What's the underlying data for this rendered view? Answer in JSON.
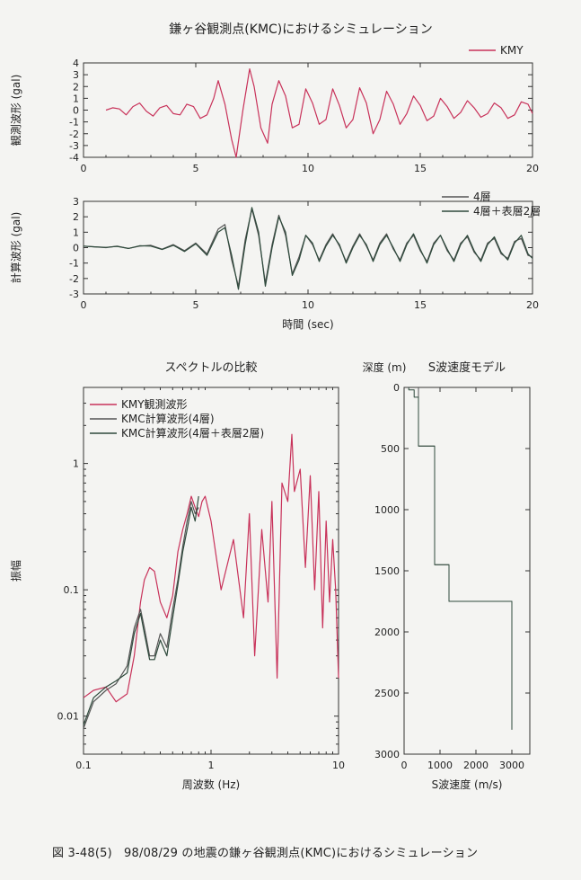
{
  "figure": {
    "title": "鎌ヶ谷観測点(KMC)におけるシミュレーション",
    "caption": "図 3-48(5)　98/08/29 の地震の鎌ヶ谷観測点(KMC)におけるシミュレーション"
  },
  "colors": {
    "observed": "#c8325a",
    "layer4": "#555555",
    "layer4_surface": "#2e4a3c",
    "axis": "#333333"
  },
  "chart_data": [
    {
      "id": "observed_waveform",
      "type": "line",
      "title": "",
      "ylabel": "観測波形 (gal)",
      "xlabel": "",
      "xlim": [
        0,
        20
      ],
      "ylim": [
        -4,
        4
      ],
      "xticks": [
        0,
        5,
        10,
        15,
        20
      ],
      "yticks": [
        4,
        3,
        2,
        1,
        0,
        -1,
        -2,
        -3,
        -4
      ],
      "legend": [
        "KMY"
      ],
      "series": [
        {
          "name": "KMY",
          "color": "#c8325a",
          "x": [
            1.0,
            1.3,
            1.6,
            1.9,
            2.2,
            2.5,
            2.8,
            3.1,
            3.4,
            3.7,
            4.0,
            4.3,
            4.6,
            4.9,
            5.2,
            5.5,
            5.8,
            6.0,
            6.3,
            6.6,
            6.8,
            7.1,
            7.4,
            7.6,
            7.9,
            8.2,
            8.4,
            8.7,
            9.0,
            9.3,
            9.6,
            9.9,
            10.2,
            10.5,
            10.8,
            11.1,
            11.4,
            11.7,
            12.0,
            12.3,
            12.6,
            12.9,
            13.2,
            13.5,
            13.8,
            14.1,
            14.4,
            14.7,
            15.0,
            15.3,
            15.6,
            15.9,
            16.2,
            16.5,
            16.8,
            17.1,
            17.4,
            17.7,
            18.0,
            18.3,
            18.6,
            18.9,
            19.2,
            19.5,
            19.8,
            20.0
          ],
          "y": [
            0,
            0.2,
            0.1,
            -0.4,
            0.3,
            0.6,
            -0.1,
            -0.5,
            0.2,
            0.4,
            -0.3,
            -0.4,
            0.5,
            0.3,
            -0.7,
            -0.4,
            1.0,
            2.5,
            0.5,
            -2.5,
            -4.0,
            0.0,
            3.5,
            2.0,
            -1.5,
            -2.8,
            0.5,
            2.5,
            1.2,
            -1.5,
            -1.2,
            1.8,
            0.6,
            -1.2,
            -0.8,
            1.8,
            0.4,
            -1.5,
            -0.8,
            1.9,
            0.6,
            -2.0,
            -0.8,
            1.6,
            0.5,
            -1.2,
            -0.3,
            1.2,
            0.4,
            -0.9,
            -0.5,
            1.0,
            0.3,
            -0.7,
            -0.2,
            0.8,
            0.2,
            -0.6,
            -0.3,
            0.6,
            0.2,
            -0.7,
            -0.4,
            0.7,
            0.5,
            -0.3
          ]
        }
      ]
    },
    {
      "id": "computed_waveform",
      "type": "line",
      "title": "",
      "ylabel": "計算波形 (gal)",
      "xlabel": "時間 (sec)",
      "xlim": [
        0,
        20
      ],
      "ylim": [
        -3,
        3
      ],
      "xticks": [
        0,
        5,
        10,
        15,
        20
      ],
      "yticks": [
        3,
        2,
        1,
        0,
        -1,
        -2,
        -3
      ],
      "legend": [
        "4層",
        "4層＋表層2層"
      ],
      "series": [
        {
          "name": "4層",
          "color": "#555555",
          "x": [
            0.0,
            0.5,
            1.0,
            1.5,
            2.0,
            2.5,
            3.0,
            3.5,
            4.0,
            4.5,
            5.0,
            5.5,
            6.0,
            6.3,
            6.6,
            6.9,
            7.2,
            7.5,
            7.8,
            8.1,
            8.4,
            8.7,
            9.0,
            9.3,
            9.6,
            9.9,
            10.2,
            10.5,
            10.8,
            11.1,
            11.4,
            11.7,
            12.0,
            12.3,
            12.6,
            12.9,
            13.2,
            13.5,
            13.8,
            14.1,
            14.4,
            14.7,
            15.0,
            15.3,
            15.6,
            15.9,
            16.2,
            16.5,
            16.8,
            17.1,
            17.4,
            17.7,
            18.0,
            18.3,
            18.6,
            18.9,
            19.2,
            19.5,
            19.8,
            20.0
          ],
          "y": [
            0.1,
            0.05,
            0,
            0.1,
            -0.05,
            0.1,
            0.15,
            -0.1,
            0.2,
            -0.2,
            0.3,
            -0.4,
            1.2,
            1.5,
            -0.8,
            -2.5,
            0.5,
            2.5,
            0.8,
            -2.3,
            0.2,
            2.1,
            0.8,
            -1.7,
            -0.6,
            0.8,
            0.2,
            -0.8,
            0.2,
            0.9,
            0.1,
            -0.9,
            0.1,
            0.9,
            0.1,
            -0.8,
            0.3,
            0.9,
            -0.1,
            -0.8,
            0.3,
            0.8,
            -0.2,
            -0.9,
            0.3,
            0.8,
            -0.2,
            -0.8,
            0.3,
            0.7,
            -0.3,
            -0.8,
            0.3,
            0.6,
            -0.4,
            -0.7,
            0.4,
            0.6,
            -0.5,
            -0.6
          ]
        },
        {
          "name": "4層＋表層2層",
          "color": "#2e4a3c",
          "x": [
            0.0,
            0.5,
            1.0,
            1.5,
            2.0,
            2.5,
            3.0,
            3.5,
            4.0,
            4.5,
            5.0,
            5.5,
            6.0,
            6.3,
            6.6,
            6.9,
            7.2,
            7.5,
            7.8,
            8.1,
            8.4,
            8.7,
            9.0,
            9.3,
            9.6,
            9.9,
            10.2,
            10.5,
            10.8,
            11.1,
            11.4,
            11.7,
            12.0,
            12.3,
            12.6,
            12.9,
            13.2,
            13.5,
            13.8,
            14.1,
            14.4,
            14.7,
            15.0,
            15.3,
            15.6,
            15.9,
            16.2,
            16.5,
            16.8,
            17.1,
            17.4,
            17.7,
            18.0,
            18.3,
            18.6,
            18.9,
            19.2,
            19.5,
            19.8,
            20.0
          ],
          "y": [
            0.1,
            0.05,
            0.02,
            0.08,
            -0.05,
            0.12,
            0.1,
            -0.12,
            0.15,
            -0.25,
            0.25,
            -0.5,
            1.0,
            1.3,
            -0.5,
            -2.7,
            0.2,
            2.6,
            1.0,
            -2.5,
            0,
            2.0,
            1.0,
            -1.8,
            -0.8,
            0.8,
            0.3,
            -0.9,
            0.1,
            0.8,
            0.2,
            -1.0,
            0.0,
            0.8,
            0.2,
            -0.9,
            0.2,
            0.8,
            0.0,
            -0.9,
            0.2,
            0.9,
            -0.1,
            -1.0,
            0.2,
            0.8,
            -0.1,
            -0.9,
            0.2,
            0.8,
            -0.2,
            -0.9,
            0.2,
            0.7,
            -0.3,
            -0.8,
            0.3,
            0.8,
            -0.4,
            -0.7
          ]
        }
      ]
    },
    {
      "id": "spectrum",
      "type": "line",
      "title": "スペクトルの比較",
      "xlabel": "周波数 (Hz)",
      "ylabel": "振幅",
      "xscale": "log",
      "yscale": "log",
      "xlim": [
        0.1,
        10
      ],
      "ylim": [
        0.005,
        4
      ],
      "xticks": [
        0.1,
        1,
        10
      ],
      "yticks": [
        0.01,
        0.1,
        1
      ],
      "legend": [
        "KMY観測波形",
        "KMC計算波形(4層)",
        "KMC計算波形(4層＋表層2層)"
      ],
      "legend_position": "top-left",
      "series": [
        {
          "name": "KMY観測波形",
          "color": "#c8325a",
          "x": [
            0.1,
            0.12,
            0.15,
            0.18,
            0.22,
            0.25,
            0.28,
            0.3,
            0.33,
            0.36,
            0.4,
            0.45,
            0.5,
            0.55,
            0.6,
            0.65,
            0.7,
            0.75,
            0.8,
            0.85,
            0.9,
            1.0,
            1.2,
            1.5,
            1.8,
            2.0,
            2.2,
            2.5,
            2.8,
            3.0,
            3.3,
            3.6,
            4.0,
            4.3,
            4.5,
            5.0,
            5.5,
            6.0,
            6.5,
            7.0,
            7.5,
            8.0,
            8.5,
            9.0,
            9.5,
            10.0
          ],
          "y": [
            0.014,
            0.016,
            0.017,
            0.013,
            0.015,
            0.03,
            0.08,
            0.12,
            0.15,
            0.14,
            0.08,
            0.06,
            0.09,
            0.2,
            0.3,
            0.4,
            0.55,
            0.45,
            0.38,
            0.5,
            0.55,
            0.35,
            0.1,
            0.25,
            0.06,
            0.4,
            0.03,
            0.3,
            0.08,
            0.5,
            0.02,
            0.7,
            0.5,
            1.7,
            0.6,
            0.9,
            0.15,
            0.8,
            0.1,
            0.6,
            0.05,
            0.35,
            0.08,
            0.25,
            0.1,
            0.02
          ]
        },
        {
          "name": "KMC計算波形(4層)",
          "color": "#555555",
          "x": [
            0.1,
            0.12,
            0.15,
            0.18,
            0.22,
            0.25,
            0.28,
            0.3,
            0.33,
            0.36,
            0.4,
            0.45,
            0.5,
            0.55,
            0.6,
            0.65,
            0.7,
            0.75,
            0.8
          ],
          "y": [
            0.008,
            0.013,
            0.016,
            0.018,
            0.025,
            0.05,
            0.07,
            0.05,
            0.03,
            0.03,
            0.045,
            0.035,
            0.07,
            0.12,
            0.22,
            0.35,
            0.5,
            0.4,
            0.45
          ]
        },
        {
          "name": "KMC計算波形(4層＋表層2層)",
          "color": "#2e4a3c",
          "x": [
            0.1,
            0.12,
            0.15,
            0.18,
            0.22,
            0.25,
            0.28,
            0.3,
            0.33,
            0.36,
            0.4,
            0.45,
            0.5,
            0.55,
            0.6,
            0.65,
            0.7,
            0.75,
            0.8
          ],
          "y": [
            0.0085,
            0.014,
            0.017,
            0.019,
            0.022,
            0.045,
            0.065,
            0.045,
            0.028,
            0.028,
            0.04,
            0.03,
            0.06,
            0.11,
            0.2,
            0.3,
            0.45,
            0.35,
            0.55
          ]
        }
      ]
    },
    {
      "id": "s_wave_velocity_model",
      "type": "line",
      "title": "S波速度モデル",
      "xlabel": "S波速度 (m/s)",
      "ylabel": "深度 (m)",
      "xlim": [
        0,
        3500
      ],
      "ylim": [
        3000,
        0
      ],
      "xticks": [
        0,
        1000,
        2000,
        3000
      ],
      "yticks": [
        0,
        500,
        1000,
        1500,
        2000,
        2500,
        3000
      ],
      "series": [
        {
          "name": "4層",
          "color": "#555555",
          "x": [
            400,
            400,
            850,
            850,
            1250,
            1250,
            3000,
            3000
          ],
          "y": [
            0,
            480,
            480,
            1450,
            1450,
            1750,
            1750,
            2800
          ]
        },
        {
          "name": "4層＋表層2層",
          "color": "#2e4a3c",
          "x": [
            130,
            130,
            280,
            280,
            400,
            400,
            850,
            850,
            1250,
            1250,
            3000,
            3000
          ],
          "y": [
            0,
            20,
            20,
            80,
            80,
            480,
            480,
            1450,
            1450,
            1750,
            1750,
            2800
          ]
        }
      ]
    }
  ]
}
